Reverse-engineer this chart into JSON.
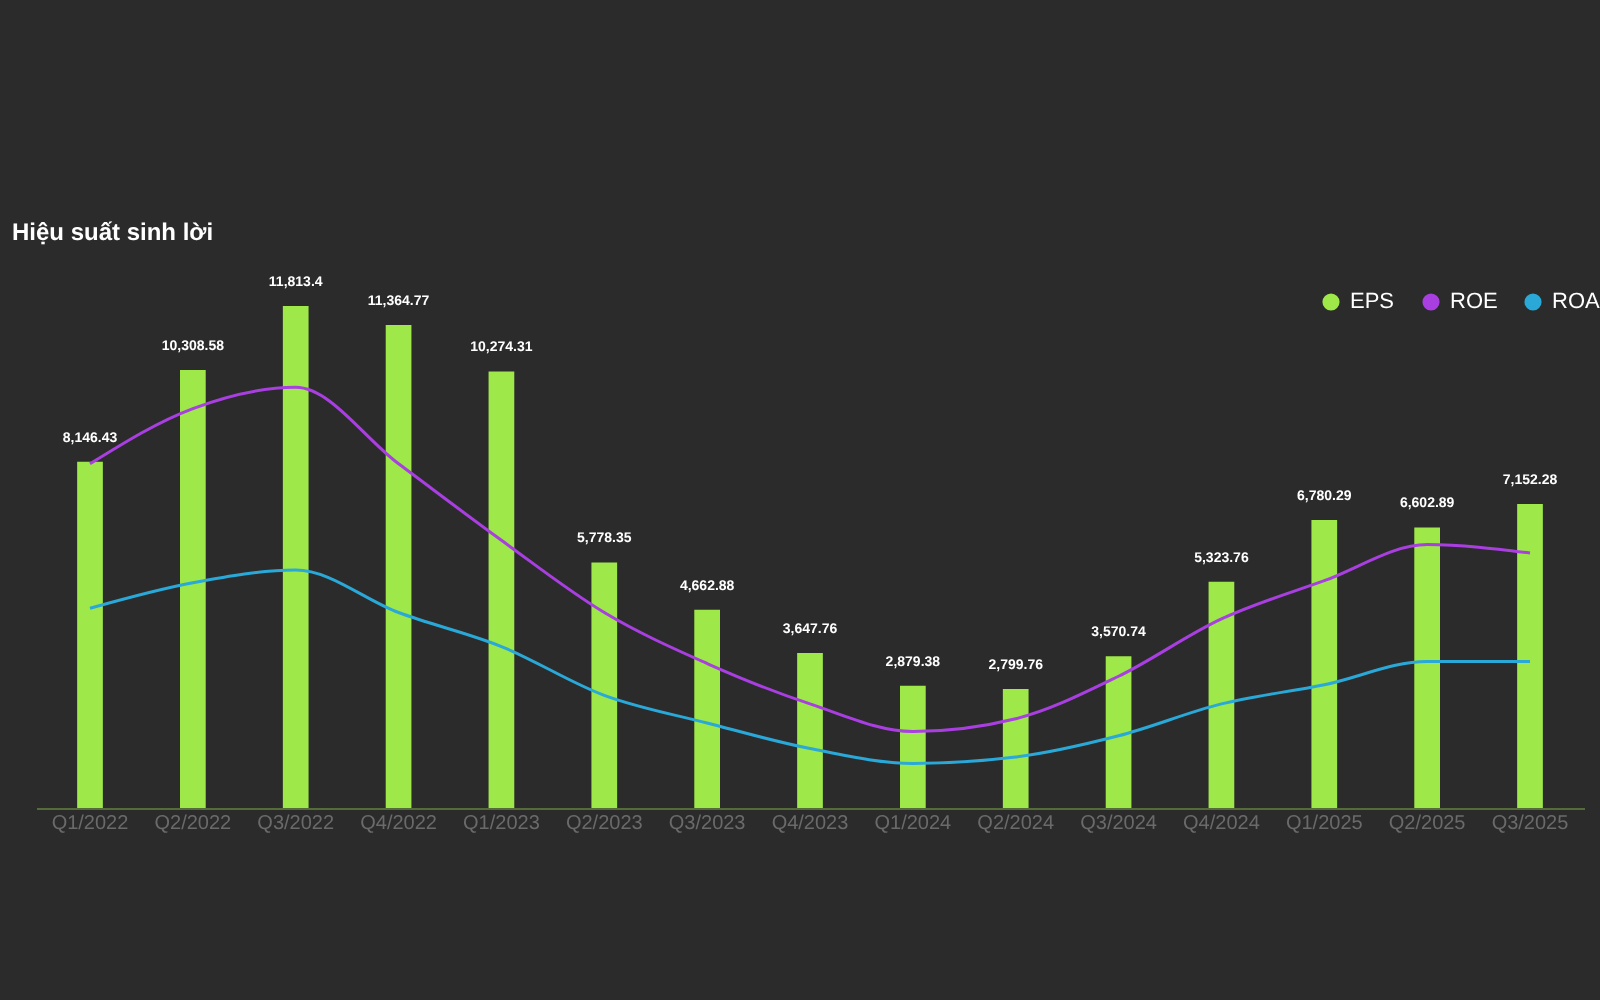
{
  "chart_data": {
    "type": "bar",
    "title": "Hiệu suất sinh lời",
    "legend": "top right",
    "tick_labels": "x",
    "categories": [
      "Q1/2022",
      "Q2/2022",
      "Q3/2022",
      "Q4/2022",
      "Q1/2023",
      "Q2/2023",
      "Q3/2023",
      "Q4/2023",
      "Q1/2024",
      "Q2/2024",
      "Q3/2024",
      "Q4/2024",
      "Q1/2025",
      "Q2/2025",
      "Q3/2025"
    ],
    "series": [
      {
        "name": "EPS",
        "color": "#9ee849",
        "values": [
          8146.43,
          10308.58,
          11813.4,
          11364.77,
          10274.31,
          5778.35,
          4662.88,
          3647.76,
          2879.38,
          2799.76,
          3570.74,
          5323.76,
          6780.29,
          6602.89,
          7152.28
        ],
        "value_labels": [
          "8,146.43",
          "10,308.58",
          "11,813.4",
          "11,364.77",
          "10,274.31",
          "5,778.35",
          "4,662.88",
          "3,647.76",
          "2,879.38",
          "2,799.76",
          "3,570.74",
          "5,323.76",
          "6,780.29",
          "6,602.89",
          "7,152.28"
        ]
      },
      {
        "name": "ROE",
        "type": "line",
        "color": "#a93fe0",
        "values": [
          8100,
          9400,
          9900,
          8100,
          6300,
          4600,
          3400,
          2450,
          1800,
          2100,
          3100,
          4450,
          5350,
          6200,
          6000
        ]
      },
      {
        "name": "ROA",
        "type": "line",
        "color": "#2aa8d8",
        "values": [
          4700,
          5300,
          5600,
          4600,
          3800,
          2650,
          2000,
          1400,
          1050,
          1200,
          1700,
          2450,
          2900,
          3450,
          3450
        ]
      }
    ]
  }
}
